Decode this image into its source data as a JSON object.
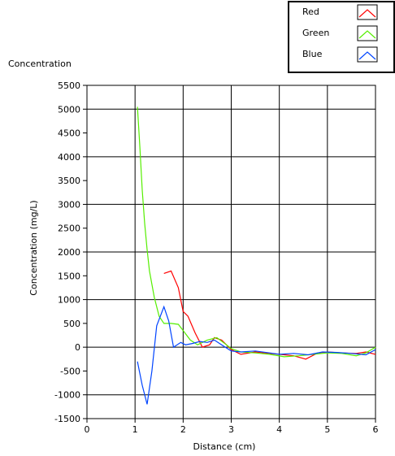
{
  "chart_data": {
    "type": "line",
    "panel_title": "Concentration",
    "xlabel": "Distance (cm)",
    "ylabel": "Concentration (mg/L)",
    "xlim": [
      0,
      6
    ],
    "ylim": [
      -1500,
      5500
    ],
    "xticks": [
      0,
      1,
      2,
      3,
      4,
      5,
      6
    ],
    "yticks": [
      5500,
      5000,
      4500,
      4000,
      3500,
      3000,
      2500,
      2000,
      1500,
      1000,
      500,
      0,
      -500,
      -1000,
      -1500
    ],
    "grid": true,
    "legend_position": "top-right",
    "series": [
      {
        "name": "Red",
        "color": "#ff0000",
        "x": [
          1.6,
          1.75,
          1.9,
          2.0,
          2.1,
          2.25,
          2.4,
          2.55,
          2.65,
          2.8,
          3.0,
          3.2,
          3.5,
          3.8,
          4.0,
          4.3,
          4.55,
          4.8,
          5.0,
          5.3,
          5.6,
          5.8,
          6.0
        ],
        "y": [
          1550,
          1600,
          1250,
          750,
          650,
          300,
          0,
          50,
          200,
          150,
          -50,
          -150,
          -100,
          -130,
          -150,
          -180,
          -250,
          -120,
          -100,
          -120,
          -130,
          -100,
          -150
        ]
      },
      {
        "name": "Green",
        "color": "#55ee00",
        "x": [
          1.05,
          1.1,
          1.15,
          1.2,
          1.25,
          1.3,
          1.4,
          1.5,
          1.6,
          1.75,
          1.9,
          2.0,
          2.15,
          2.3,
          2.5,
          2.7,
          2.9,
          3.0,
          3.2,
          3.5,
          3.8,
          4.1,
          4.4,
          4.7,
          5.0,
          5.3,
          5.6,
          5.8,
          6.0
        ],
        "y": [
          5050,
          4200,
          3300,
          2600,
          2050,
          1600,
          1050,
          650,
          500,
          500,
          480,
          350,
          150,
          50,
          150,
          200,
          50,
          -30,
          -100,
          -120,
          -150,
          -200,
          -180,
          -150,
          -120,
          -130,
          -180,
          -120,
          0
        ]
      },
      {
        "name": "Blue",
        "color": "#0044ff",
        "x": [
          1.05,
          1.15,
          1.25,
          1.35,
          1.45,
          1.6,
          1.7,
          1.8,
          1.95,
          2.05,
          2.2,
          2.35,
          2.5,
          2.65,
          2.8,
          3.0,
          3.2,
          3.5,
          3.8,
          4.0,
          4.3,
          4.6,
          4.9,
          5.2,
          5.5,
          5.8,
          6.0
        ],
        "y": [
          -300,
          -800,
          -1200,
          -500,
          450,
          850,
          550,
          0,
          100,
          50,
          80,
          120,
          100,
          150,
          50,
          -80,
          -100,
          -80,
          -120,
          -150,
          -130,
          -160,
          -100,
          -110,
          -130,
          -160,
          -50
        ]
      }
    ]
  }
}
